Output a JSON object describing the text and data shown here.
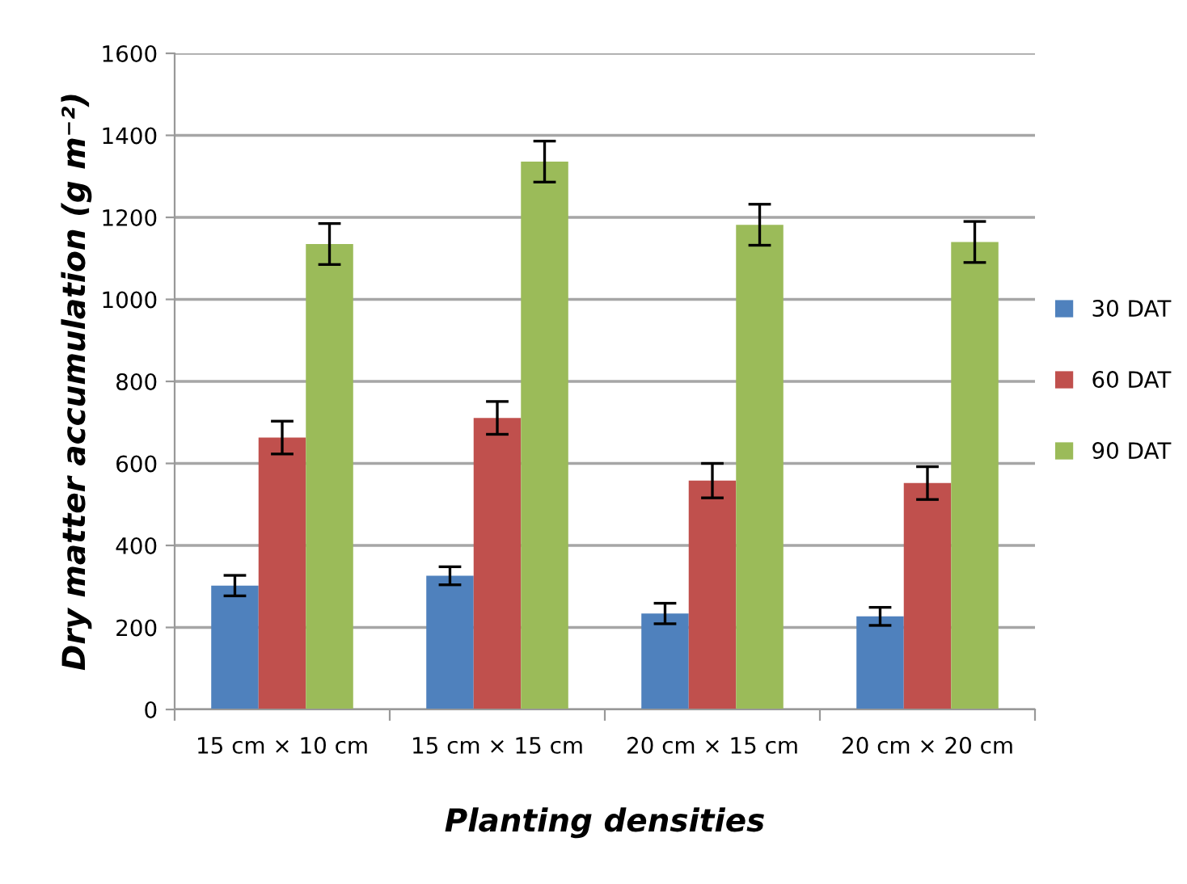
{
  "chart_data": {
    "type": "bar",
    "xlabel": "Planting densities",
    "ylabel": "Dry matter accumulation (g m⁻²)",
    "categories": [
      "15 cm × 10 cm",
      "15 cm × 15 cm",
      "20 cm × 15 cm",
      "20 cm × 20 cm"
    ],
    "series": [
      {
        "name": "30 DAT",
        "color": "#4f81bd",
        "values": [
          302,
          326,
          234,
          227
        ],
        "errors": [
          25,
          22,
          25,
          22
        ]
      },
      {
        "name": "60 DAT",
        "color": "#c0504d",
        "values": [
          663,
          711,
          558,
          552
        ],
        "errors": [
          40,
          40,
          42,
          40
        ]
      },
      {
        "name": "90 DAT",
        "color": "#9bbb59",
        "values": [
          1135,
          1336,
          1182,
          1140
        ],
        "errors": [
          50,
          50,
          50,
          50
        ]
      }
    ],
    "ylim": [
      0,
      1600
    ],
    "yticks": [
      0,
      200,
      400,
      600,
      800,
      1000,
      1200,
      1400,
      1600
    ],
    "grid": "y",
    "legend": "right"
  }
}
